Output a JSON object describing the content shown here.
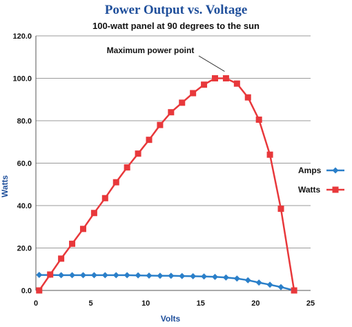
{
  "chart_data": {
    "type": "line",
    "title": "Power Output vs. Voltage",
    "subtitle": "100-watt panel at 90 degrees to the sun",
    "xlabel": "Volts",
    "ylabel": "Watts",
    "xlim": [
      0,
      25
    ],
    "ylim": [
      0,
      120
    ],
    "xticks": [
      0,
      5,
      10,
      15,
      20,
      25
    ],
    "yticks": [
      0,
      20,
      40,
      60,
      80,
      100,
      120
    ],
    "xtick_labels": [
      "0",
      "5",
      "10",
      "15",
      "20",
      "25"
    ],
    "ytick_labels": [
      "0.0",
      "20.0",
      "40.0",
      "60.0",
      "80.0",
      "100.0",
      "120.0"
    ],
    "grid": "horizontal",
    "legend_position": "right",
    "series": [
      {
        "name": "Amps",
        "color": "#2a7fc9",
        "marker": "diamond",
        "x": [
          0.3,
          1.3,
          2.3,
          3.3,
          4.3,
          5.3,
          6.3,
          7.3,
          8.3,
          9.3,
          10.3,
          11.3,
          12.3,
          13.3,
          14.3,
          15.3,
          16.3,
          17.3,
          18.3,
          19.3,
          20.3,
          21.3,
          22.3,
          23.5
        ],
        "y": [
          7.3,
          7.3,
          7.2,
          7.2,
          7.2,
          7.2,
          7.2,
          7.2,
          7.2,
          7.1,
          7.0,
          6.9,
          6.9,
          6.8,
          6.7,
          6.6,
          6.4,
          6.1,
          5.6,
          4.8,
          3.7,
          2.7,
          1.6,
          0.0
        ]
      },
      {
        "name": "Watts",
        "color": "#e8383b",
        "marker": "square",
        "x": [
          0.3,
          1.3,
          2.3,
          3.3,
          4.3,
          5.3,
          6.3,
          7.3,
          8.3,
          9.3,
          10.3,
          11.3,
          12.3,
          13.3,
          14.3,
          15.3,
          16.3,
          17.3,
          18.3,
          19.3,
          20.3,
          21.3,
          22.3,
          23.5
        ],
        "y": [
          0.0,
          7.5,
          15.0,
          22.0,
          29.0,
          36.5,
          43.5,
          51.0,
          58.0,
          64.5,
          71.0,
          78.0,
          84.0,
          88.5,
          93.0,
          97.0,
          100.0,
          100.0,
          97.5,
          91.0,
          80.5,
          64.0,
          38.5,
          0.0
        ]
      }
    ],
    "annotations": [
      {
        "text": "Maximum power point",
        "x": 17.3,
        "y": 100.0
      }
    ]
  }
}
